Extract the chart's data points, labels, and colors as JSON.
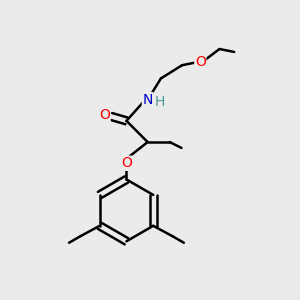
{
  "bg_color": "#ebebeb",
  "bond_color": "#000000",
  "bond_width": 1.8,
  "figsize": [
    3.0,
    3.0
  ],
  "dpi": 100,
  "atom_colors": {
    "O": "#ff0000",
    "N": "#0000cc",
    "H": "#4d9999"
  },
  "font_size_atom": 10,
  "font_size_methyl": 9
}
